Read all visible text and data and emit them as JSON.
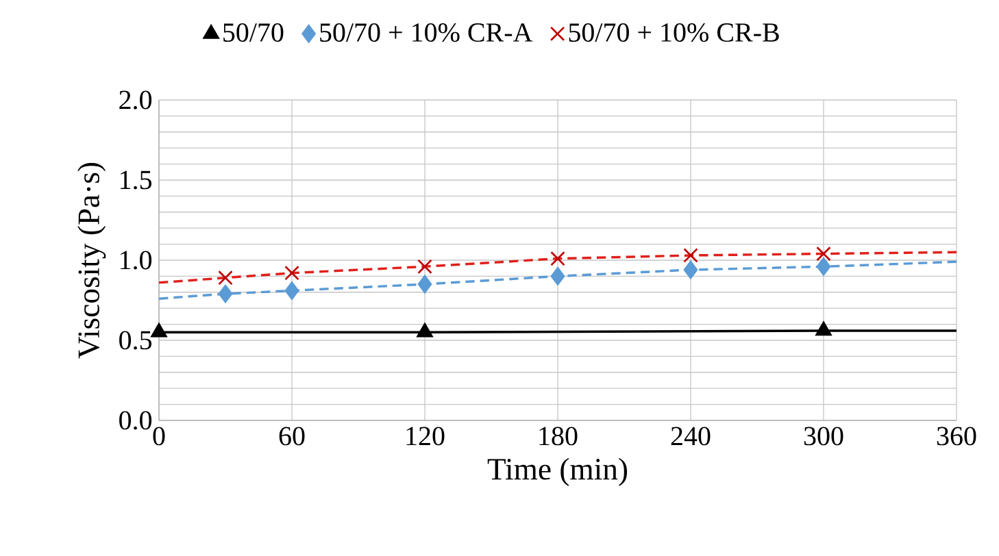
{
  "chart_data": {
    "type": "line",
    "xlabel": "Time (min)",
    "ylabel": "Viscosity (Pa·s)",
    "xlim": [
      0,
      360
    ],
    "xticks": [
      0,
      60,
      120,
      180,
      240,
      300,
      360
    ],
    "ylim": [
      0,
      2
    ],
    "yticks": [
      {
        "value": 0,
        "label": "0.0"
      },
      {
        "value": 0.1,
        "label": null
      },
      {
        "value": 0.2,
        "label": null
      },
      {
        "value": 0.3,
        "label": null
      },
      {
        "value": 0.4,
        "label": null
      },
      {
        "value": 0.5,
        "label": "0.5"
      },
      {
        "value": 0.6,
        "label": null
      },
      {
        "value": 0.7,
        "label": null
      },
      {
        "value": 0.8,
        "label": null
      },
      {
        "value": 0.9,
        "label": null
      },
      {
        "value": 1.0,
        "label": "1.0"
      },
      {
        "value": 1.1,
        "label": null
      },
      {
        "value": 1.2,
        "label": null
      },
      {
        "value": 1.3,
        "label": null
      },
      {
        "value": 1.4,
        "label": null
      },
      {
        "value": 1.5,
        "label": "1.5"
      },
      {
        "value": 1.6,
        "label": null
      },
      {
        "value": 1.7,
        "label": null
      },
      {
        "value": 1.8,
        "label": null
      },
      {
        "value": 1.9,
        "label": null
      },
      {
        "value": 2.0,
        "label": "2.0"
      }
    ],
    "grid": true,
    "legend": "top",
    "series": [
      {
        "color": "#000000",
        "line_style": "solid",
        "x": [
          0,
          120,
          300,
          360
        ],
        "values": [
          0.55,
          0.55,
          0.56,
          0.56
        ]
      },
      {
        "color": "#5b9bd5",
        "line_style": "dashed",
        "x": [
          0,
          30,
          60,
          120,
          180,
          240,
          300,
          360
        ],
        "values": [
          0.76,
          0.79,
          0.81,
          0.85,
          0.9,
          0.94,
          0.96,
          0.99
        ]
      },
      {
        "color": "#e0201b",
        "line_style": "dashed",
        "x": [
          0,
          30,
          60,
          120,
          180,
          240,
          300,
          360
        ],
        "values": [
          0.86,
          0.89,
          0.92,
          0.96,
          1.01,
          1.03,
          1.04,
          1.05
        ]
      },
      {
        "type": "scatter",
        "name": "50/70",
        "color": "#000000",
        "marker": "triangle",
        "x": [
          0,
          120,
          300
        ],
        "values": [
          0.55,
          0.55,
          0.56
        ]
      },
      {
        "type": "scatter",
        "name": "50/70 + 10% CR-A",
        "color": "#5b9bd5",
        "marker": "diamond",
        "x": [
          30,
          60,
          120,
          180,
          240,
          300
        ],
        "values": [
          0.79,
          0.81,
          0.85,
          0.9,
          0.94,
          0.96
        ]
      },
      {
        "type": "scatter",
        "name": "50/70 + 10% CR-B",
        "color": "#c00000",
        "marker": "cross",
        "x": [
          30,
          60,
          120,
          180,
          240,
          300
        ],
        "values": [
          0.89,
          0.92,
          0.96,
          1.01,
          1.03,
          1.04
        ]
      }
    ]
  }
}
